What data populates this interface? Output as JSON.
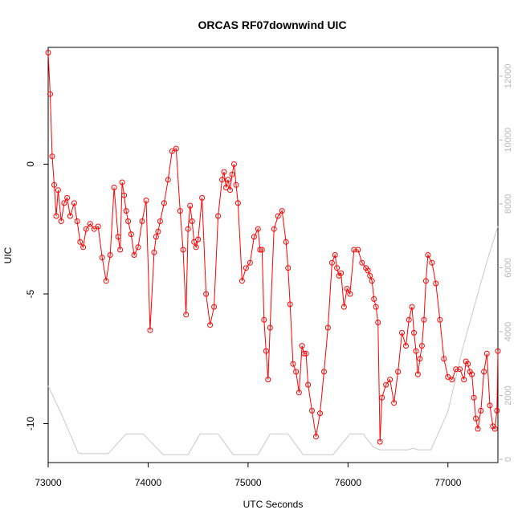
{
  "chart_data": {
    "type": "line",
    "title": "ORCAS RF07downwind UIC",
    "xlabel": "UTC Seconds",
    "ylabel": "UIC",
    "xlim": [
      73000,
      77500
    ],
    "ylim": [
      -11.5,
      4.5
    ],
    "y2lim": [
      -100,
      12900
    ],
    "x_ticks": [
      "73000",
      "74000",
      "75000",
      "76000",
      "77000"
    ],
    "y_ticks": [
      "-10",
      "-5",
      "0"
    ],
    "y2_ticks": [
      "0",
      "2000",
      "4000",
      "6000",
      "8000",
      "10000",
      "12000"
    ],
    "colors": {
      "uic": "#ff0000",
      "altitude": "#c8c8c8",
      "axis": "#000000",
      "right_axis": "#b8b8b8"
    },
    "series": [
      {
        "axis": "left",
        "marker": "circle",
        "x": [
          73000,
          73020,
          73040,
          73060,
          73080,
          73100,
          73130,
          73160,
          73190,
          73220,
          73260,
          73290,
          73320,
          73350,
          73380,
          73420,
          73460,
          73500,
          73540,
          73580,
          73620,
          73660,
          73700,
          73720,
          73740,
          73760,
          73780,
          73800,
          73830,
          73860,
          73900,
          73940,
          73980,
          74020,
          74060,
          74080,
          74100,
          74120,
          74160,
          74200,
          74240,
          74280,
          74320,
          74350,
          74380,
          74400,
          74420,
          74440,
          74460,
          74480,
          74500,
          74540,
          74580,
          74620,
          74660,
          74700,
          74740,
          74760,
          74780,
          74800,
          74820,
          74840,
          74860,
          74880,
          74900,
          74940,
          74980,
          75020,
          75060,
          75100,
          75120,
          75140,
          75160,
          75180,
          75200,
          75220,
          75260,
          75300,
          75340,
          75380,
          75400,
          75420,
          75450,
          75480,
          75510,
          75540,
          75560,
          75580,
          75600,
          75640,
          75680,
          75720,
          75760,
          75800,
          75840,
          75870,
          75890,
          75910,
          75930,
          75960,
          75990,
          76020,
          76060,
          76100,
          76140,
          76180,
          76200,
          76220,
          76240,
          76260,
          76280,
          76300,
          76320,
          76340,
          76380,
          76420,
          76460,
          76500,
          76540,
          76580,
          76610,
          76640,
          76660,
          76680,
          76700,
          76720,
          76740,
          76760,
          76780,
          76800,
          76840,
          76880,
          76920,
          76960,
          77000,
          77040,
          77080,
          77120,
          77160,
          77180,
          77200,
          77220,
          77240,
          77260,
          77280,
          77300,
          77330,
          77360,
          77390,
          77420,
          77450,
          77470,
          77490,
          77500
        ],
        "y": [
          4.3,
          2.7,
          0.3,
          -0.8,
          -2.0,
          -1.0,
          -2.2,
          -1.5,
          -1.3,
          -2.0,
          -1.5,
          -2.2,
          -3.0,
          -3.2,
          -2.5,
          -2.3,
          -2.5,
          -2.4,
          -3.6,
          -4.5,
          -3.5,
          -0.9,
          -2.8,
          -3.3,
          -0.7,
          -1.2,
          -1.8,
          -2.2,
          -2.7,
          -3.5,
          -3.2,
          -2.2,
          -1.4,
          -6.4,
          -3.4,
          -2.8,
          -2.6,
          -2.2,
          -1.5,
          -0.6,
          0.5,
          0.6,
          -1.8,
          -3.3,
          -5.8,
          -2.5,
          -1.6,
          -2.2,
          -3.0,
          -3.2,
          -2.9,
          -1.3,
          -5.0,
          -6.2,
          -5.5,
          -2.0,
          -0.6,
          -0.3,
          -0.9,
          -0.6,
          -1.0,
          -0.4,
          0.0,
          -0.8,
          -1.5,
          -4.5,
          -4.0,
          -3.8,
          -2.8,
          -2.5,
          -3.3,
          -3.3,
          -6.0,
          -7.2,
          -8.3,
          -6.3,
          -2.5,
          -2.0,
          -1.8,
          -3.0,
          -4.0,
          -5.4,
          -7.7,
          -8.0,
          -8.8,
          -7.0,
          -7.3,
          -7.3,
          -8.5,
          -9.5,
          -10.5,
          -9.6,
          -8.0,
          -6.3,
          -3.8,
          -3.5,
          -4.0,
          -4.3,
          -4.2,
          -5.5,
          -4.8,
          -5.0,
          -3.3,
          -3.3,
          -3.8,
          -4.0,
          -4.1,
          -4.3,
          -4.5,
          -5.2,
          -5.5,
          -6.1,
          -10.7,
          -9.0,
          -8.5,
          -8.3,
          -9.2,
          -8.0,
          -6.5,
          -7.0,
          -6.0,
          -5.5,
          -6.5,
          -7.2,
          -8.1,
          -7.5,
          -7.0,
          -6.0,
          -4.5,
          -3.5,
          -3.8,
          -4.6,
          -6.0,
          -7.5,
          -8.2,
          -8.3,
          -7.9,
          -7.9,
          -8.3,
          -7.6,
          -7.7,
          -8.0,
          -8.1,
          -9.0,
          -9.8,
          -10.2,
          -9.5,
          -8.0,
          -7.3,
          -9.3,
          -10.1,
          -10.2,
          -9.5,
          -7.2
        ],
        "values_note": ""
      },
      {
        "axis": "right",
        "marker": "none",
        "x": [
          73000,
          73150,
          73300,
          73330,
          73600,
          73780,
          73950,
          74150,
          74170,
          74400,
          74520,
          74700,
          74850,
          74870,
          75100,
          75220,
          75400,
          75550,
          75580,
          75850,
          76020,
          76150,
          76250,
          76280,
          76320,
          76480,
          76600,
          76650,
          76700,
          76830,
          77000,
          77150,
          77300,
          77400,
          77500
        ],
        "y": [
          2300,
          1300,
          200,
          180,
          180,
          800,
          800,
          150,
          150,
          150,
          800,
          800,
          150,
          150,
          150,
          800,
          800,
          150,
          150,
          150,
          800,
          800,
          400,
          350,
          300,
          300,
          300,
          350,
          300,
          300,
          1500,
          3500,
          5200,
          6300,
          7300
        ]
      }
    ]
  }
}
